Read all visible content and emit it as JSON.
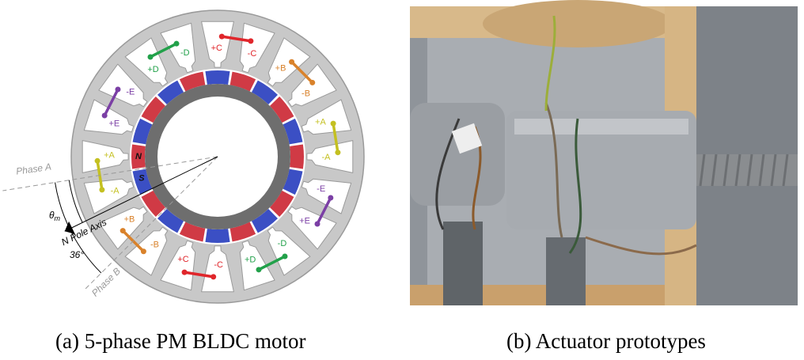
{
  "panel_a": {
    "caption": "(a) 5-phase PM BLDC motor",
    "coils": [
      {
        "labels": [
          "+C",
          "-C"
        ],
        "color": "#e0262b"
      },
      {
        "labels": [
          "+B",
          "-B"
        ],
        "color": "#d9822b"
      },
      {
        "labels": [
          "+A",
          "-A"
        ],
        "color": "#c4c021"
      },
      {
        "labels": [
          "-E",
          "+E"
        ],
        "color": "#7b3fa5"
      },
      {
        "labels": [
          "-D",
          "+D"
        ],
        "color": "#22a14a"
      },
      {
        "labels": [
          "-C",
          "+C"
        ],
        "color": "#e0262b"
      },
      {
        "labels": [
          "-B",
          "+B"
        ],
        "color": "#d9822b"
      },
      {
        "labels": [
          "-A",
          "+A"
        ],
        "color": "#c4c021"
      },
      {
        "labels": [
          "+E",
          "-E"
        ],
        "color": "#7b3fa5"
      },
      {
        "labels": [
          "+D",
          "-D"
        ],
        "color": "#22a14a"
      }
    ],
    "magnet_labels": [
      "S",
      "N"
    ],
    "phase_a": "Phase A",
    "phase_b": "Phase B",
    "pole_axis": "N Pole Axis",
    "theta": "θ",
    "theta_sub": "m",
    "angle": "36°"
  },
  "panel_b": {
    "caption": "(b) Actuator prototypes"
  }
}
